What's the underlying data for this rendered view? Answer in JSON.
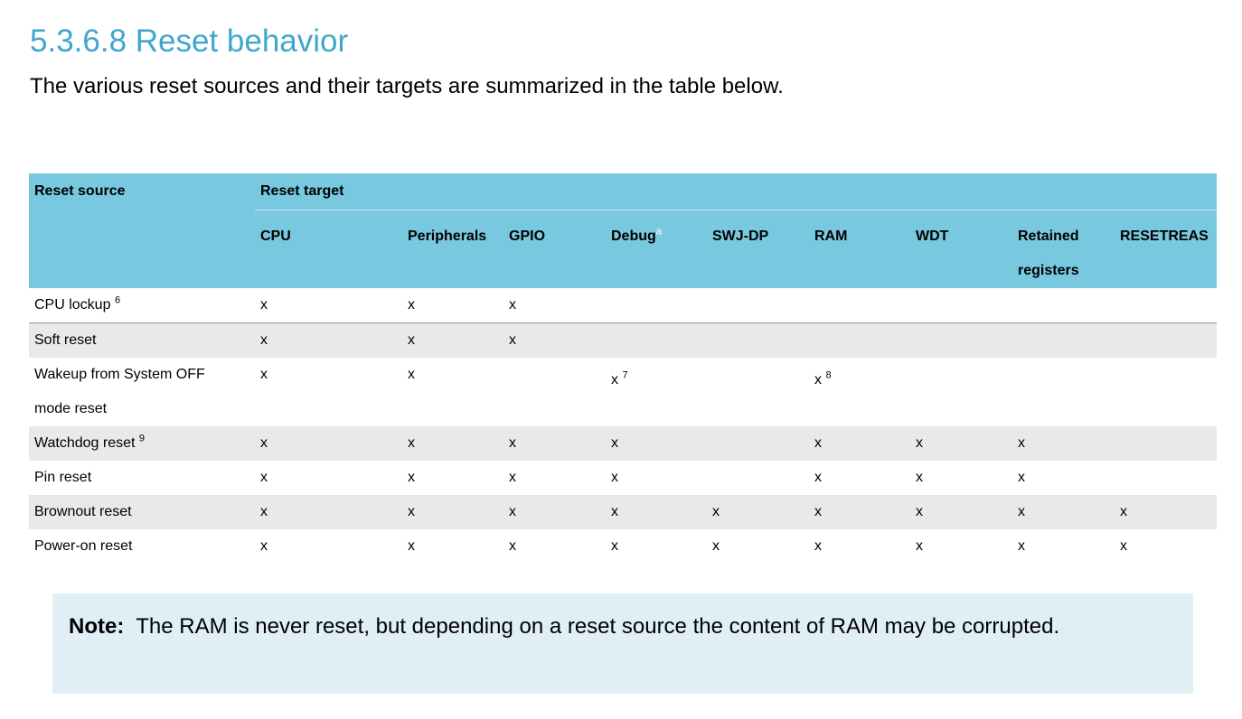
{
  "heading": "5.3.6.8 Reset behavior",
  "intro": "The various reset sources and their targets are summarized in the table below.",
  "colors": {
    "heading": "#3fa7cc",
    "table_header": "#78c8e0",
    "row_alt": "#e9e9e9",
    "note_bg": "#e0eff5"
  },
  "table": {
    "source_header": "Reset source",
    "target_header": "Reset target",
    "columns": [
      {
        "label": "CPU",
        "sup": ""
      },
      {
        "label": "Peripherals",
        "sup": ""
      },
      {
        "label": "GPIO",
        "sup": ""
      },
      {
        "label": "Debug",
        "sup": "a"
      },
      {
        "label": "SWJ-DP",
        "sup": ""
      },
      {
        "label": "RAM",
        "sup": ""
      },
      {
        "label": "WDT",
        "sup": ""
      },
      {
        "label": "Retained registers",
        "sup": ""
      },
      {
        "label": "RESETREAS",
        "sup": ""
      }
    ],
    "rows": [
      {
        "source": "CPU lockup",
        "sup": "6",
        "cells": [
          {
            "v": "x"
          },
          {
            "v": "x"
          },
          {
            "v": "x"
          },
          {
            "v": ""
          },
          {
            "v": ""
          },
          {
            "v": ""
          },
          {
            "v": ""
          },
          {
            "v": ""
          },
          {
            "v": ""
          }
        ]
      },
      {
        "source": "Soft reset",
        "sup": "",
        "cells": [
          {
            "v": "x"
          },
          {
            "v": "x"
          },
          {
            "v": "x"
          },
          {
            "v": ""
          },
          {
            "v": ""
          },
          {
            "v": ""
          },
          {
            "v": ""
          },
          {
            "v": ""
          },
          {
            "v": ""
          }
        ]
      },
      {
        "source": "Wakeup from System OFF mode reset",
        "sup": "",
        "cells": [
          {
            "v": "x"
          },
          {
            "v": "x"
          },
          {
            "v": ""
          },
          {
            "v": "x",
            "sup": "7"
          },
          {
            "v": ""
          },
          {
            "v": "x",
            "sup": "8"
          },
          {
            "v": ""
          },
          {
            "v": ""
          },
          {
            "v": ""
          }
        ]
      },
      {
        "source": "Watchdog reset",
        "sup": "9",
        "cells": [
          {
            "v": "x"
          },
          {
            "v": "x"
          },
          {
            "v": "x"
          },
          {
            "v": "x"
          },
          {
            "v": ""
          },
          {
            "v": "x"
          },
          {
            "v": "x"
          },
          {
            "v": "x"
          },
          {
            "v": ""
          }
        ]
      },
      {
        "source": "Pin reset",
        "sup": "",
        "cells": [
          {
            "v": "x"
          },
          {
            "v": "x"
          },
          {
            "v": "x"
          },
          {
            "v": "x"
          },
          {
            "v": ""
          },
          {
            "v": "x"
          },
          {
            "v": "x"
          },
          {
            "v": "x"
          },
          {
            "v": ""
          }
        ]
      },
      {
        "source": "Brownout reset",
        "sup": "",
        "cells": [
          {
            "v": "x"
          },
          {
            "v": "x"
          },
          {
            "v": "x"
          },
          {
            "v": "x"
          },
          {
            "v": "x"
          },
          {
            "v": "x"
          },
          {
            "v": "x"
          },
          {
            "v": "x"
          },
          {
            "v": "x"
          }
        ]
      },
      {
        "source": "Power-on reset",
        "sup": "",
        "cells": [
          {
            "v": "x"
          },
          {
            "v": "x"
          },
          {
            "v": "x"
          },
          {
            "v": "x"
          },
          {
            "v": "x"
          },
          {
            "v": "x"
          },
          {
            "v": "x"
          },
          {
            "v": "x"
          },
          {
            "v": "x"
          }
        ]
      }
    ]
  },
  "note": {
    "label": "Note:",
    "text": "The RAM is never reset, but depending on a reset source the content of RAM may be corrupted."
  }
}
